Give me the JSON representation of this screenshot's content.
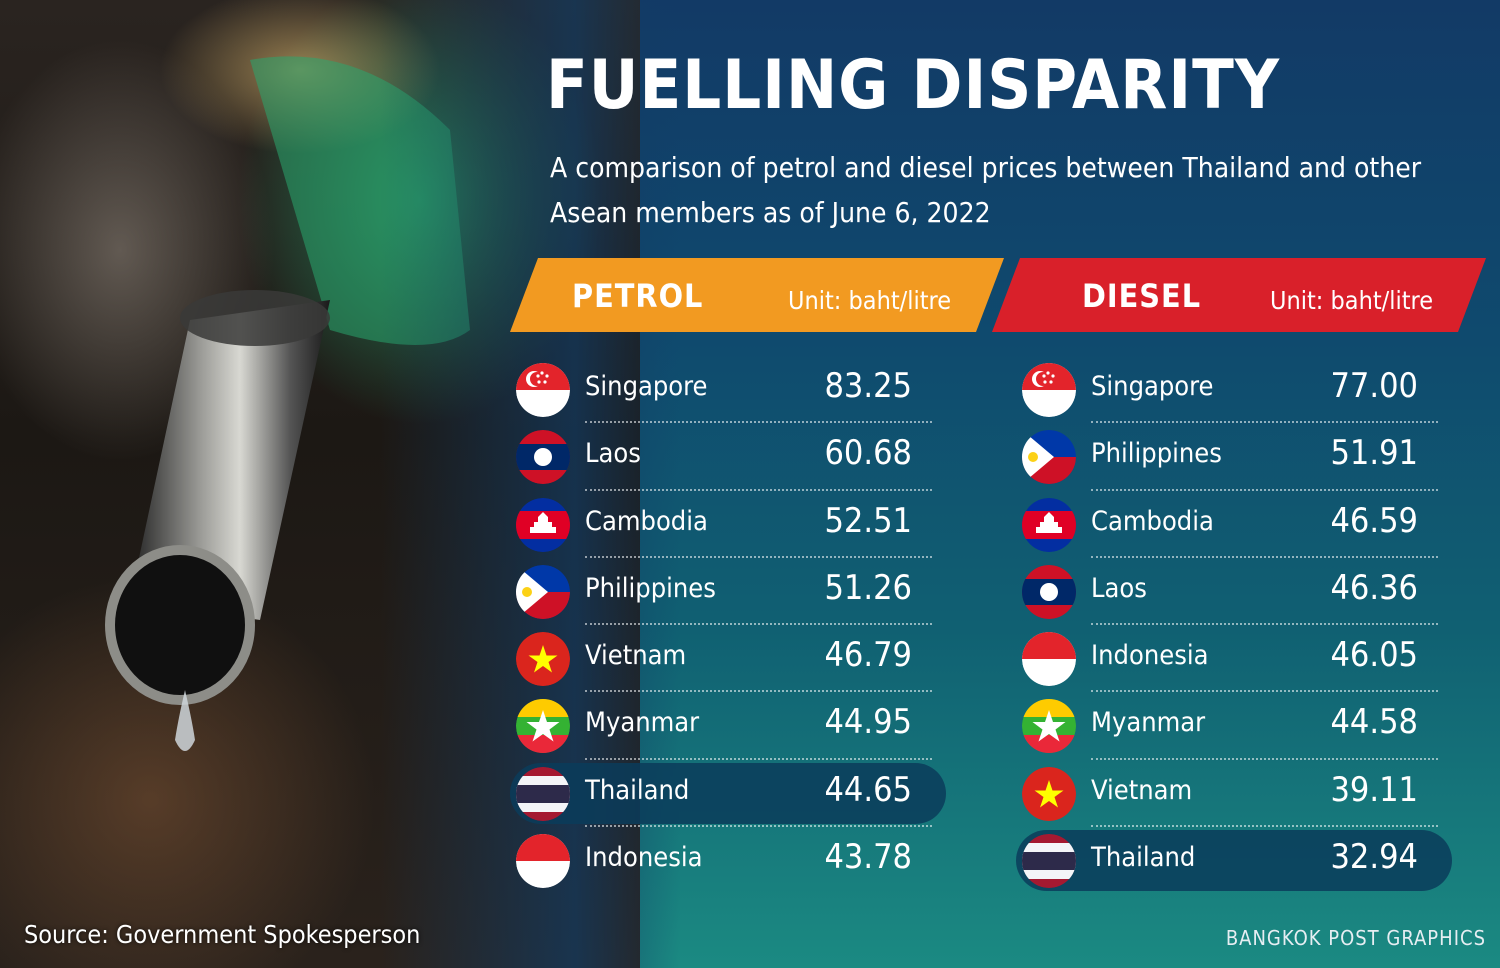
{
  "title": "FUELLING DISPARITY",
  "subtitle": "A comparison of petrol and diesel prices between Thailand and other Asean members as of June 6, 2022",
  "source": "Source: Government Spokesperson",
  "credit": "BANGKOK POST GRAPHICS",
  "colors": {
    "petrol": "#f29a21",
    "diesel": "#d9202a",
    "background": "#123a66"
  },
  "chart_data": [
    {
      "type": "table",
      "title": "PETROL",
      "unit": "Unit: baht/litre",
      "categories": [
        "Singapore",
        "Laos",
        "Cambodia",
        "Philippines",
        "Vietnam",
        "Myanmar",
        "Thailand",
        "Indonesia"
      ],
      "values": [
        "83.25",
        "60.68",
        "52.51",
        "51.26",
        "46.79",
        "44.95",
        "44.65",
        "43.78"
      ],
      "flags": [
        "sg",
        "la",
        "kh",
        "ph",
        "vn",
        "mm",
        "th",
        "id"
      ],
      "highlight": "Thailand"
    },
    {
      "type": "table",
      "title": "DIESEL",
      "unit": "Unit: baht/litre",
      "categories": [
        "Singapore",
        "Philippines",
        "Cambodia",
        "Laos",
        "Indonesia",
        "Myanmar",
        "Vietnam",
        "Thailand"
      ],
      "values": [
        "77.00",
        "51.91",
        "46.59",
        "46.36",
        "46.05",
        "44.58",
        "39.11",
        "32.94"
      ],
      "flags": [
        "sg",
        "ph",
        "kh",
        "la",
        "id",
        "mm",
        "vn",
        "th"
      ],
      "highlight": "Thailand"
    }
  ]
}
